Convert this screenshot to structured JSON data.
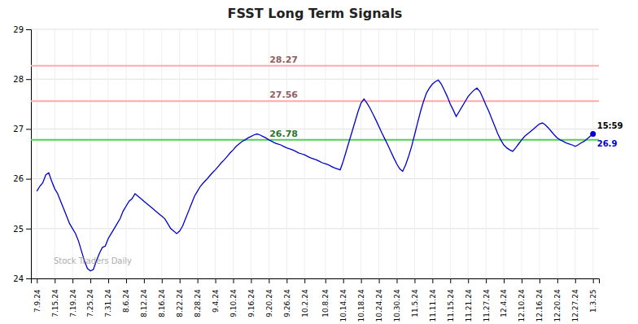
{
  "chart_data": {
    "type": "line",
    "title": "FSST Long Term Signals",
    "color": "#0000cc",
    "grid": true,
    "ylim": [
      24.0,
      29.0
    ],
    "yticks": [
      24,
      25,
      26,
      27,
      28,
      29
    ],
    "hlines": [
      {
        "value": 28.27,
        "label": "28.27",
        "color": "#ffaaaa"
      },
      {
        "value": 27.56,
        "label": "27.56",
        "color": "#ffaaaa"
      },
      {
        "value": 26.78,
        "label": "26.78",
        "color": "#55cc55"
      }
    ],
    "end_labels": {
      "time": "15:59",
      "price": "26.9"
    },
    "watermark": "Stock Traders Daily",
    "categories": [
      "7.9.24",
      null,
      null,
      null,
      null,
      null,
      "7.15.24",
      null,
      null,
      null,
      null,
      null,
      "7.19.24",
      null,
      null,
      null,
      null,
      null,
      "7.25.24",
      null,
      null,
      null,
      null,
      null,
      "7.31.24",
      null,
      null,
      null,
      null,
      null,
      "8.6.24",
      null,
      null,
      null,
      null,
      null,
      "8.12.24",
      null,
      null,
      null,
      null,
      null,
      "8.16.24",
      null,
      null,
      null,
      null,
      null,
      "8.22.24",
      null,
      null,
      null,
      null,
      null,
      "8.28.24",
      null,
      null,
      null,
      null,
      null,
      "9.4.24",
      null,
      null,
      null,
      null,
      null,
      "9.10.24",
      null,
      null,
      null,
      null,
      null,
      "9.16.24",
      null,
      null,
      null,
      null,
      null,
      "9.20.24",
      null,
      null,
      null,
      null,
      null,
      "9.26.24",
      null,
      null,
      null,
      null,
      null,
      "10.2.24",
      null,
      null,
      null,
      null,
      null,
      null,
      "10.8.24",
      null,
      null,
      null,
      null,
      null,
      "10.14.24",
      null,
      null,
      null,
      null,
      null,
      "10.18.24",
      null,
      null,
      null,
      null,
      null,
      "10.24.24",
      null,
      null,
      null,
      null,
      null,
      "10.30.24",
      null,
      null,
      null,
      null,
      null,
      "11.5.24",
      null,
      null,
      null,
      null,
      null,
      "11.11.24",
      null,
      null,
      null,
      null,
      null,
      "11.15.24",
      null,
      null,
      null,
      null,
      null,
      "11.21.24",
      null,
      null,
      null,
      null,
      null,
      "11.27.24",
      null,
      null,
      null,
      null,
      null,
      "12.4.24",
      null,
      null,
      null,
      null,
      null,
      "12.10.24",
      null,
      null,
      null,
      null,
      null,
      "12.16.24",
      null,
      null,
      null,
      null,
      null,
      "12.20.24",
      null,
      null,
      null,
      null,
      null,
      "12.27.24",
      null,
      null,
      null,
      null,
      null,
      "1.3.25"
    ],
    "values": [
      25.75,
      25.85,
      25.92,
      26.08,
      26.12,
      25.95,
      25.8,
      25.7,
      25.55,
      25.4,
      25.25,
      25.1,
      25.0,
      24.9,
      24.75,
      24.55,
      24.35,
      24.2,
      24.15,
      24.18,
      24.35,
      24.5,
      24.62,
      24.65,
      24.8,
      24.9,
      25.0,
      25.1,
      25.2,
      25.35,
      25.45,
      25.55,
      25.6,
      25.7,
      25.65,
      25.6,
      25.55,
      25.5,
      25.45,
      25.4,
      25.35,
      25.3,
      25.25,
      25.2,
      25.1,
      25.0,
      24.95,
      24.9,
      24.95,
      25.05,
      25.2,
      25.35,
      25.5,
      25.65,
      25.75,
      25.85,
      25.92,
      25.98,
      26.05,
      26.12,
      26.18,
      26.25,
      26.32,
      26.38,
      26.45,
      26.52,
      26.58,
      26.65,
      26.7,
      26.75,
      26.78,
      26.82,
      26.85,
      26.88,
      26.9,
      26.88,
      26.85,
      26.82,
      26.78,
      26.75,
      26.72,
      26.7,
      26.68,
      26.65,
      26.62,
      26.6,
      26.58,
      26.55,
      26.52,
      26.5,
      26.48,
      26.45,
      26.42,
      26.4,
      26.38,
      26.35,
      26.32,
      26.3,
      26.28,
      26.25,
      26.22,
      26.2,
      26.18,
      26.35,
      26.55,
      26.75,
      26.95,
      27.15,
      27.35,
      27.52,
      27.6,
      27.52,
      27.42,
      27.3,
      27.18,
      27.05,
      26.92,
      26.8,
      26.68,
      26.55,
      26.42,
      26.3,
      26.2,
      26.15,
      26.28,
      26.45,
      26.65,
      26.88,
      27.12,
      27.35,
      27.55,
      27.72,
      27.82,
      27.9,
      27.95,
      27.98,
      27.9,
      27.78,
      27.65,
      27.5,
      27.38,
      27.25,
      27.35,
      27.45,
      27.55,
      27.65,
      27.72,
      27.78,
      27.82,
      27.75,
      27.62,
      27.48,
      27.35,
      27.2,
      27.05,
      26.9,
      26.78,
      26.68,
      26.62,
      26.58,
      26.55,
      26.62,
      26.7,
      26.78,
      26.85,
      26.9,
      26.95,
      27.0,
      27.05,
      27.1,
      27.12,
      27.08,
      27.02,
      26.95,
      26.88,
      26.82,
      26.78,
      26.75,
      26.72,
      26.7,
      26.68,
      26.65,
      26.68,
      26.72,
      26.75,
      26.8,
      26.85,
      26.9
    ]
  }
}
